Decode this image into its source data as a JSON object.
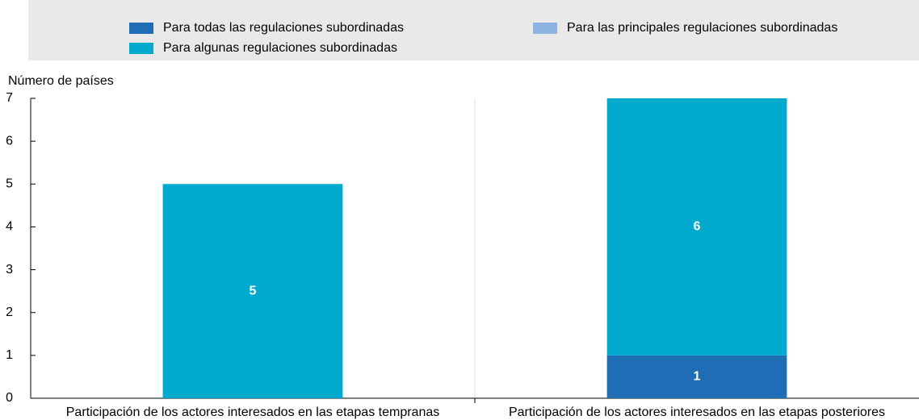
{
  "chart_data": {
    "type": "stacked_bar",
    "y_label": "Número de países",
    "categories": [
      "Participación de los actores interesados en las etapas tempranas",
      "Participación de los actores interesados en las etapas posteriores"
    ],
    "series": [
      {
        "name": "Para todas las regulaciones subordinadas",
        "color": "#1f6db5",
        "values": [
          0,
          1
        ]
      },
      {
        "name": "Para las principales regulaciones subordinadas",
        "color": "#8db3e2",
        "values": [
          0,
          0
        ]
      },
      {
        "name": "Para algunas regulaciones subordinadas",
        "color": "#00a9ce",
        "values": [
          5,
          6
        ]
      }
    ],
    "ylim": [
      0,
      7
    ],
    "yticks": [
      0,
      1,
      2,
      3,
      4,
      5,
      6,
      7
    ],
    "grid": false
  }
}
